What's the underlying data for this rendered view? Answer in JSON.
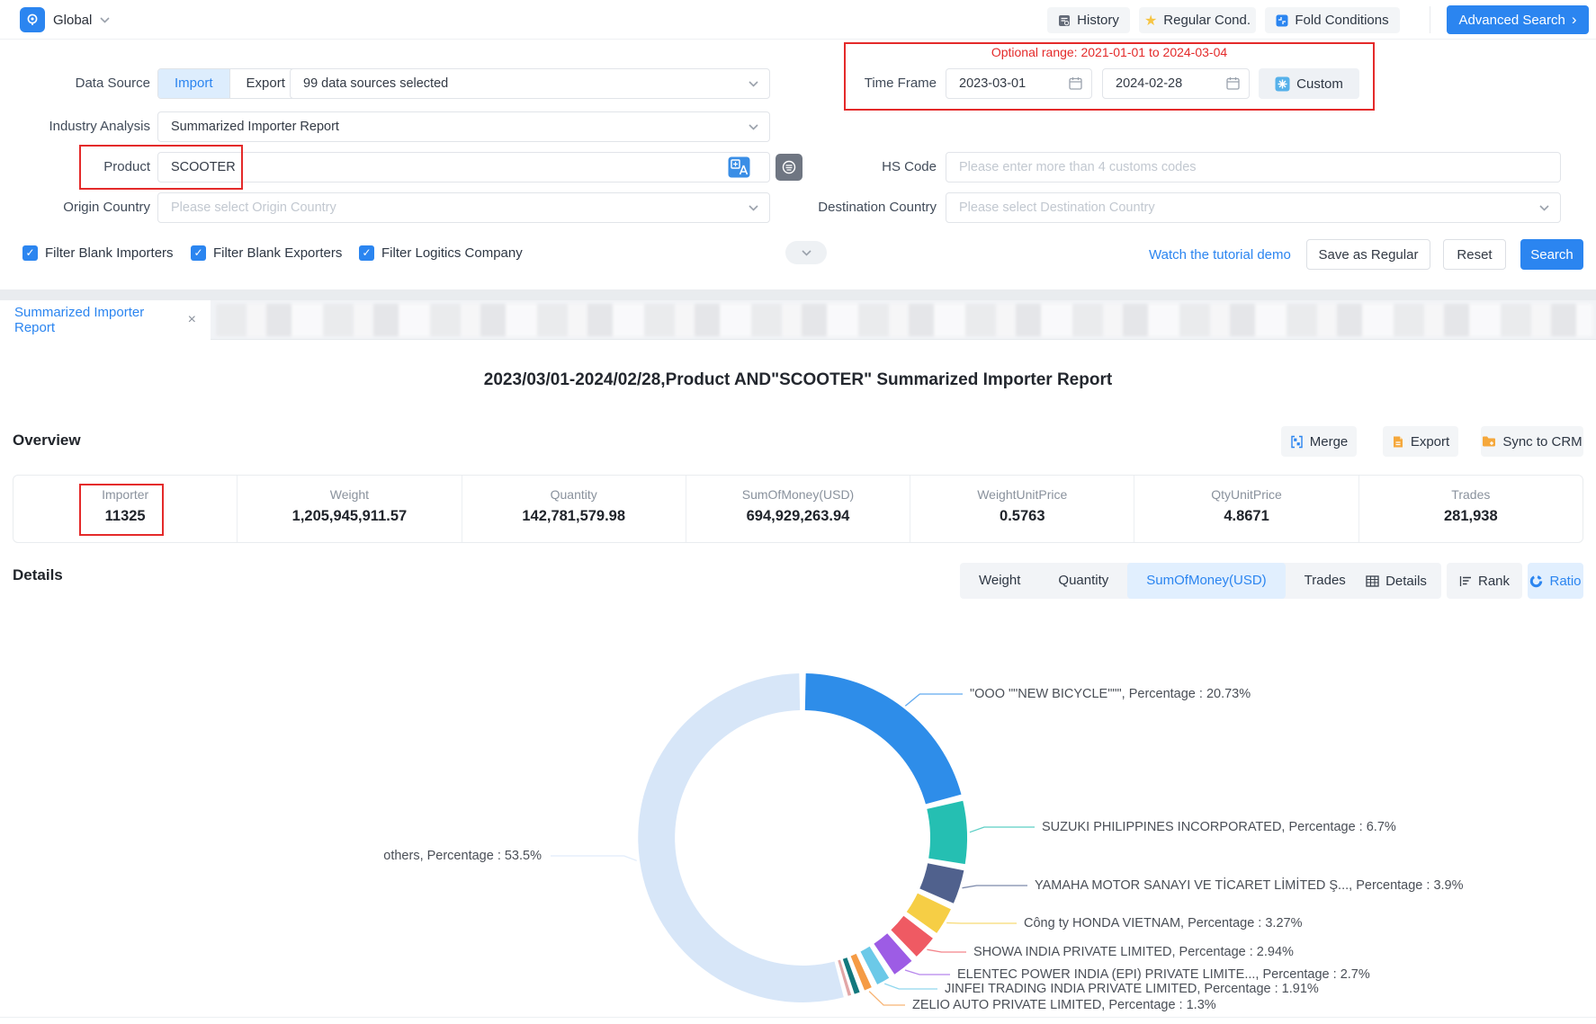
{
  "topbar": {
    "region": "Global",
    "history": "History",
    "regular": "Regular Cond.",
    "fold": "Fold Conditions",
    "advanced": "Advanced Search",
    "advanced_chevron": "›"
  },
  "form": {
    "data_source_label": "Data Source",
    "import_label": "Import",
    "export_label": "Export",
    "sources_value": "99 data sources selected",
    "industry_label": "Industry Analysis",
    "industry_value": "Summarized Importer Report",
    "product_label": "Product",
    "product_value": "SCOOTER",
    "origin_label": "Origin Country",
    "origin_placeholder": "Please select Origin Country",
    "hs_label": "HS Code",
    "hs_placeholder": "Please enter more than 4 customs codes",
    "dest_label": "Destination Country",
    "dest_placeholder": "Please select Destination Country",
    "time_label": "Time Frame",
    "optional_range": "Optional range:  2021-01-01 to 2024-03-04",
    "date_from": "2023-03-01",
    "date_to": "2024-02-28",
    "custom_label": "Custom",
    "checkboxes": [
      {
        "label": "Filter Blank Importers",
        "checked": true
      },
      {
        "label": "Filter Blank Exporters",
        "checked": true
      },
      {
        "label": "Filter Logitics Company",
        "checked": true
      }
    ],
    "check_glyph": "✓",
    "tutorial_link": "Watch the tutorial demo",
    "save_regular": "Save as Regular",
    "reset": "Reset",
    "search": "Search"
  },
  "tab": {
    "label": "Summarized Importer Report",
    "close": "×"
  },
  "report": {
    "title": "2023/03/01-2024/02/28,Product AND\"SCOOTER\" Summarized Importer Report"
  },
  "overview": {
    "heading": "Overview",
    "merge": "Merge",
    "export": "Export",
    "sync": "Sync to CRM",
    "stats": [
      {
        "label": "Importer",
        "value": "11325"
      },
      {
        "label": "Weight",
        "value": "1,205,945,911.57"
      },
      {
        "label": "Quantity",
        "value": "142,781,579.98"
      },
      {
        "label": "SumOfMoney(USD)",
        "value": "694,929,263.94"
      },
      {
        "label": "WeightUnitPrice",
        "value": "0.5763"
      },
      {
        "label": "QtyUnitPrice",
        "value": "4.8671"
      },
      {
        "label": "Trades",
        "value": "281,938"
      }
    ]
  },
  "details": {
    "heading": "Details",
    "metric_tabs": [
      "Weight",
      "Quantity",
      "SumOfMoney(USD)",
      "Trades"
    ],
    "active_metric": "SumOfMoney(USD)",
    "view_tabs": [
      "Details",
      "Rank",
      "Ratio"
    ],
    "active_view": "Ratio"
  },
  "chart_data": {
    "type": "pie",
    "subtype": "donut",
    "unit": "%",
    "slices": [
      {
        "name": "\"OOO \"\"NEW BICYCLE\"\"\"",
        "value": 20.73,
        "color": "#2E8DE9",
        "display": "\"OOO \"\"NEW BICYCLE\"\"\",  Percentage : 20.73%"
      },
      {
        "name": "SUZUKI PHILIPPINES INCORPORATED",
        "value": 6.7,
        "color": "#25BFB2",
        "display": "SUZUKI PHILIPPINES INCORPORATED,  Percentage : 6.7%"
      },
      {
        "name": "YAMAHA MOTOR SANAYI VE TİCARET LİMİTED Ş...",
        "value": 3.9,
        "color": "#50618D",
        "display": "YAMAHA MOTOR SANAYI VE TİCARET LİMİTED Ş...,  Percentage : 3.9%"
      },
      {
        "name": "Công ty HONDA VIETNAM",
        "value": 3.27,
        "color": "#F6CE45",
        "display": "Công ty HONDA VIETNAM,  Percentage : 3.27%"
      },
      {
        "name": "SHOWA INDIA PRIVATE LIMITED",
        "value": 2.94,
        "color": "#EF5A63",
        "display": "SHOWA INDIA PRIVATE LIMITED,  Percentage : 2.94%"
      },
      {
        "name": "ELENTEC POWER INDIA (EPI) PRIVATE LIMITE...",
        "value": 2.7,
        "color": "#9D5CE5",
        "display": "ELENTEC POWER INDIA (EPI) PRIVATE LIMITE...,  Percentage : 2.7%"
      },
      {
        "name": "JINFEI TRADING INDIA PRIVATE LIMITED",
        "value": 1.91,
        "color": "#6BC9E8",
        "display": "JINFEI TRADING INDIA PRIVATE LIMITED,  Percentage : 1.91%"
      },
      {
        "name": "ZELIO AUTO PRIVATE LIMITED",
        "value": 1.3,
        "color": "#F59B45",
        "display": "ZELIO AUTO PRIVATE LIMITED,  Percentage : 1.3%"
      },
      {
        "name": "",
        "value": 0.95,
        "color": "#13787D",
        "display": ""
      },
      {
        "name": "",
        "value": 0.55,
        "color": "#E2A6A6",
        "display": ""
      },
      {
        "name": "others",
        "value": 53.5,
        "color": "#D7E6F8",
        "display": "others,  Percentage : 53.5%"
      }
    ]
  }
}
